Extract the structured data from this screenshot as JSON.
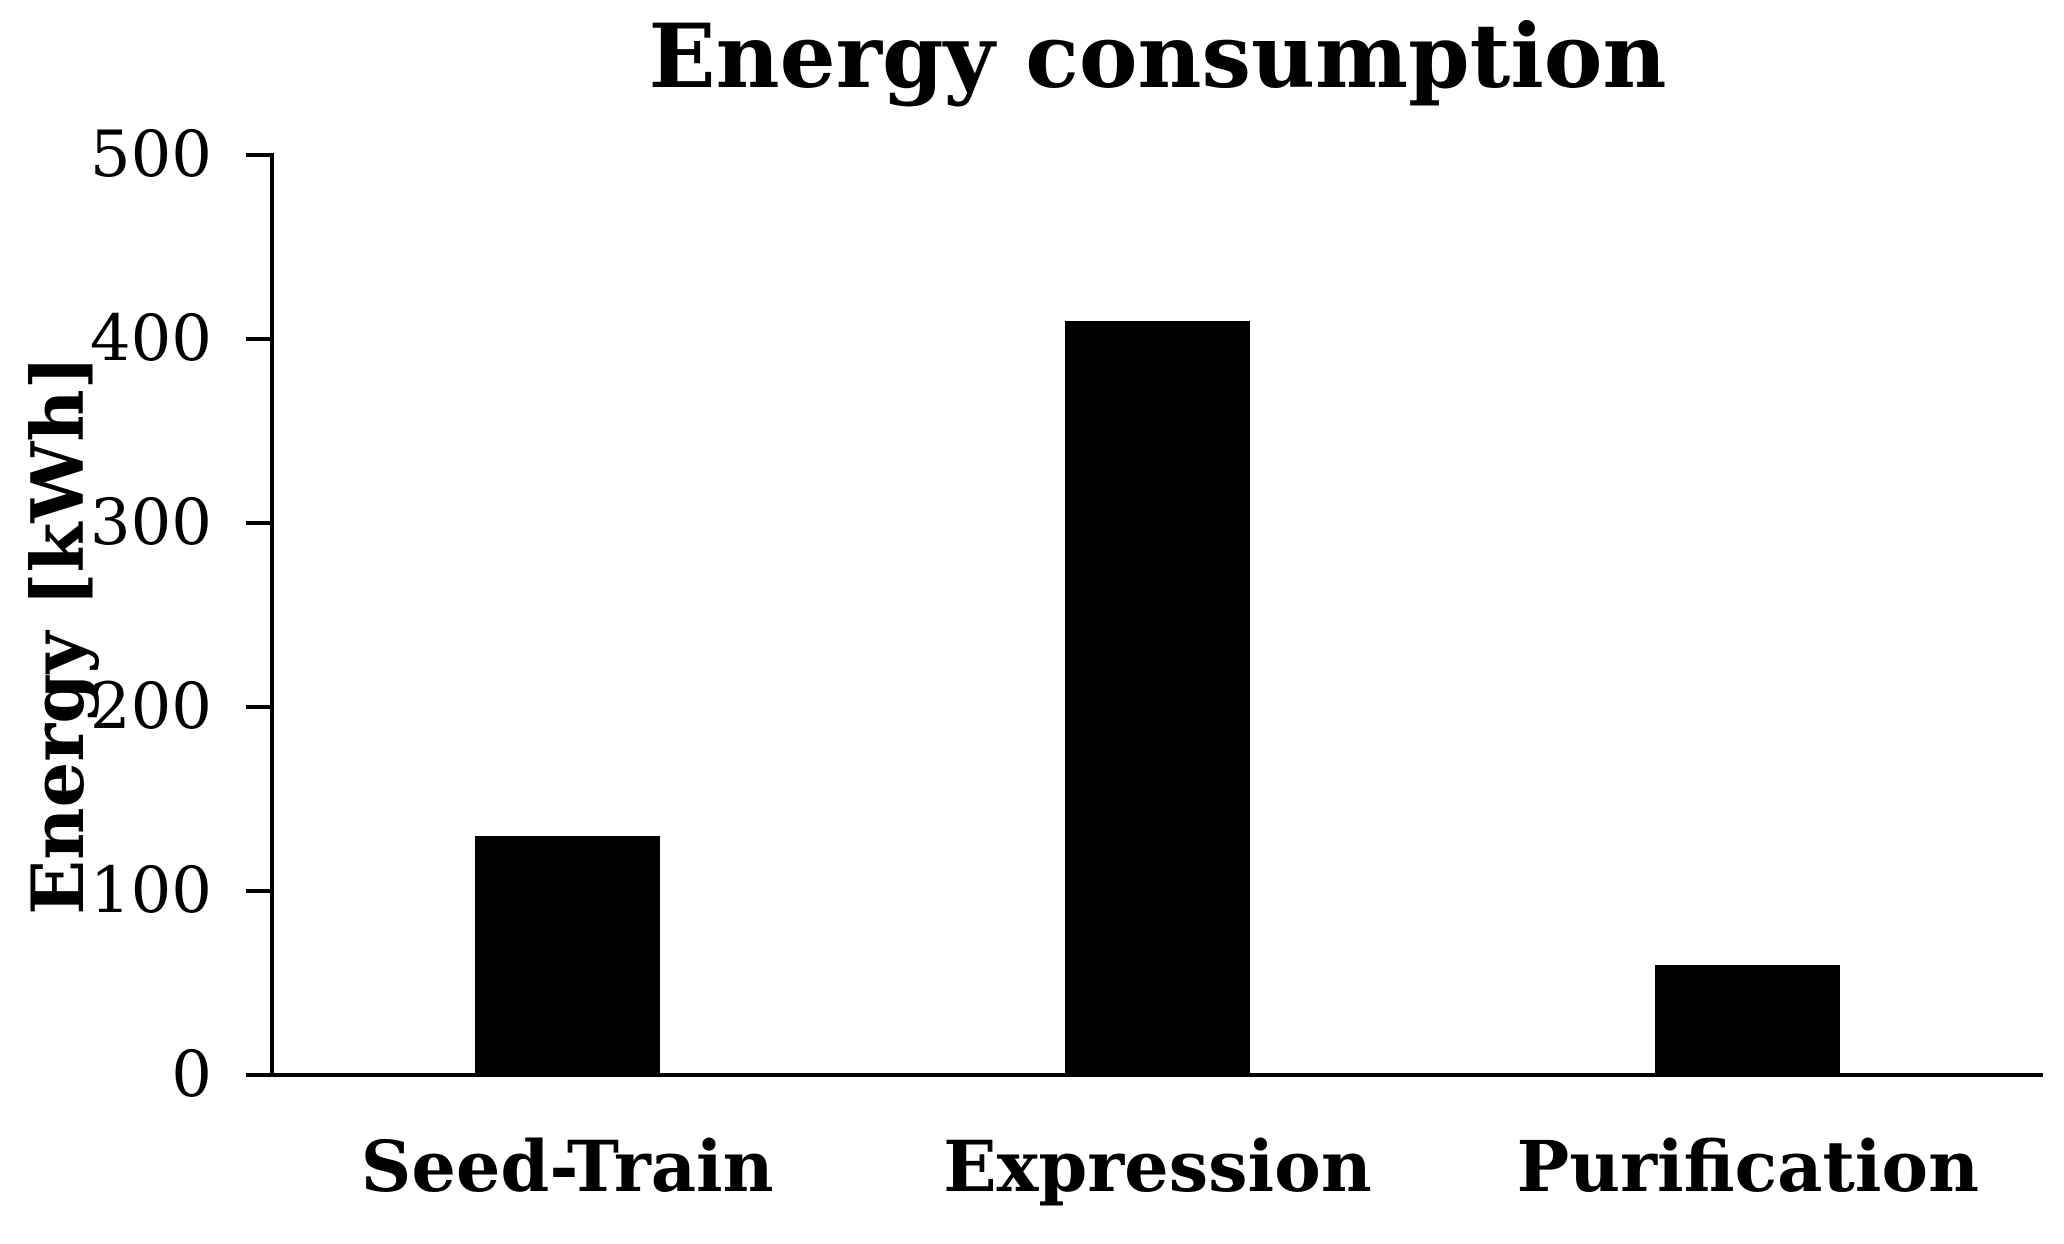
{
  "chart_data": {
    "type": "bar",
    "title": "Energy consumption",
    "xlabel": "",
    "ylabel": "Energy [kWh]",
    "categories": [
      "Seed-Train",
      "Expression",
      "Purification"
    ],
    "values": [
      130,
      410,
      60
    ],
    "yticks": [
      0,
      100,
      200,
      300,
      400,
      500
    ],
    "ylim": [
      0,
      500
    ],
    "grid": false,
    "legend": false,
    "colors": {
      "bar": "#000000",
      "axis": "#000000",
      "text": "#000000",
      "background": "#ffffff"
    }
  }
}
